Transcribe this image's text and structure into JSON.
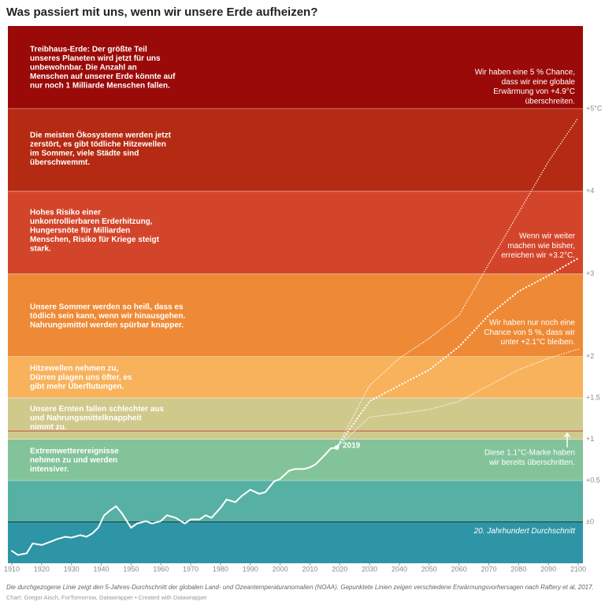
{
  "chart_data": {
    "type": "line",
    "title": "Was passiert mit uns, wenn wir unsere Erde aufheizen?",
    "notes": [
      "Die durchgezogene Linie zeigt den 5-Jahres-Durchschnitt der globalen Land- und Ozeantemperaturanomalien (NOAA). Gepunktete Linien zeigen verschiedene Erwärmungsvorhersagen nach Raftery et al, 2017.",
      "Chart: Gregor Aisch, ForTomorrow, Datawrapper • Created with Datawrapper"
    ],
    "xlim": [
      1910,
      2100
    ],
    "xticks": [
      1910,
      1920,
      1930,
      1940,
      1950,
      1960,
      1970,
      1980,
      1990,
      2000,
      2010,
      2020,
      2030,
      2040,
      2050,
      2060,
      2070,
      2080,
      2090,
      2100
    ],
    "ylim": [
      -0.5,
      6
    ],
    "yticks": [
      {
        "value": 5,
        "label": "+5°C"
      },
      {
        "value": 4,
        "label": "+4"
      },
      {
        "value": 3,
        "label": "+3"
      },
      {
        "value": 2,
        "label": "+2"
      },
      {
        "value": 1.5,
        "label": "+1.5"
      },
      {
        "value": 1,
        "label": "+1"
      },
      {
        "value": 0.5,
        "label": "+0.5"
      },
      {
        "value": 0,
        "label": "±0"
      }
    ],
    "bands": [
      {
        "from": 5,
        "to": 6,
        "color": "#9a0a08",
        "text": [
          "Treibhaus-Erde: Der größte Teil",
          "unseres Planeten wird jetzt für uns",
          "unbewohnbar. Die Anzahl an",
          "Menschen auf unserer Erde könnte auf",
          "nur noch 1 Milliarde Menschen fallen."
        ]
      },
      {
        "from": 4,
        "to": 5,
        "color": "#b52a12",
        "text": [
          "Die meisten Ökosysteme werden jetzt",
          "zerstört, es gibt tödliche Hitzewellen",
          "im Sommer, viele Städte sind",
          "überschwemmt."
        ]
      },
      {
        "from": 3,
        "to": 4,
        "color": "#d3452a",
        "text": [
          "Hohes Risiko einer",
          "unkontrollierbaren Erderhitzung,",
          "Hungersnöte für Milliarden",
          "Menschen, Risiko für Kriege steigt",
          "stark."
        ]
      },
      {
        "from": 2,
        "to": 3,
        "color": "#ee8a35",
        "text": [
          "Unsere Sommer werden so heiß, dass es",
          "tödlich sein kann, wenn wir hinausgehen.",
          "Nahrungsmittel werden spürbar knapper."
        ]
      },
      {
        "from": 1.5,
        "to": 2,
        "color": "#f8b25c",
        "text": [
          "Hitzewellen nehmen zu,",
          "Dürren plagen uns öfter, es",
          "gibt mehr Überflutungen."
        ]
      },
      {
        "from": 1,
        "to": 1.5,
        "color": "#d0c98c",
        "text": [
          "Unsere Ernten fallen schlechter aus",
          "und Nahrungsmittelknappheit",
          "nimmt zu."
        ]
      },
      {
        "from": 0.5,
        "to": 1,
        "color": "#83c39a",
        "text": [
          "Extremwetterereignisse",
          "nehmen zu und werden",
          "intensiver."
        ]
      },
      {
        "from": 0,
        "to": 0.5,
        "color": "#56b1a4",
        "text": []
      },
      {
        "from": -0.5,
        "to": 0,
        "color": "#2e95a6",
        "text": [
          "20. Jahrhundert Durchschnitt"
        ]
      }
    ],
    "marker_line": 1.1,
    "annotations": [
      [
        "Wir haben eine 5 % Chance,",
        "dass wir eine globale",
        "Erwärmung von +4.9°C",
        "überschreiten."
      ],
      [
        "Wenn wir weiter",
        "machen wie bisher,",
        "erreichen wir +3.2°C."
      ],
      [
        "Wir haben nur noch eine",
        "Chance von 5 %, dass wir",
        "unter +2.1°C bleiben."
      ],
      [
        "Diese 1.1°C-Marke haben",
        "wir bereits überschritten."
      ],
      [
        "2019"
      ]
    ],
    "series": [
      {
        "color": "#ffffff",
        "style": "solid",
        "x": [
          1910,
          1912,
          1915,
          1917,
          1920,
          1923,
          1925,
          1928,
          1930,
          1933,
          1935,
          1937,
          1939,
          1941,
          1943,
          1945,
          1947,
          1950,
          1952,
          1955,
          1957,
          1960,
          1962,
          1965,
          1968,
          1970,
          1973,
          1975,
          1977,
          1980,
          1982,
          1985,
          1987,
          1990,
          1993,
          1995,
          1998,
          2000,
          2003,
          2005,
          2008,
          2010,
          2012,
          2015,
          2017,
          2019
        ],
        "values": [
          -0.35,
          -0.4,
          -0.38,
          -0.26,
          -0.28,
          -0.24,
          -0.21,
          -0.18,
          -0.19,
          -0.16,
          -0.18,
          -0.14,
          -0.07,
          0.08,
          0.14,
          0.19,
          0.1,
          -0.07,
          -0.02,
          0.01,
          -0.02,
          0.01,
          0.08,
          0.05,
          -0.02,
          0.03,
          0.03,
          0.08,
          0.05,
          0.17,
          0.27,
          0.24,
          0.31,
          0.39,
          0.34,
          0.36,
          0.49,
          0.52,
          0.62,
          0.64,
          0.64,
          0.66,
          0.7,
          0.81,
          0.89,
          0.9
        ]
      },
      {
        "color": "#ffffff",
        "style": "dotted",
        "x": [
          2019,
          2030,
          2040,
          2050,
          2060,
          2070,
          2080,
          2090,
          2100
        ],
        "values": [
          0.9,
          1.65,
          1.98,
          2.22,
          2.5,
          3.12,
          3.74,
          4.36,
          4.89
        ]
      },
      {
        "color": "#ffffff",
        "style": "dotted-bold",
        "x": [
          2019,
          2030,
          2040,
          2050,
          2060,
          2070,
          2080,
          2090,
          2100
        ],
        "values": [
          0.9,
          1.46,
          1.65,
          1.84,
          2.12,
          2.5,
          2.79,
          2.98,
          3.19
        ]
      },
      {
        "color": "#ffffff",
        "style": "dotted",
        "x": [
          2019,
          2030,
          2040,
          2050,
          2060,
          2070,
          2080,
          2090,
          2100
        ],
        "values": [
          0.9,
          1.27,
          1.31,
          1.36,
          1.46,
          1.65,
          1.84,
          1.98,
          2.09
        ]
      }
    ]
  }
}
